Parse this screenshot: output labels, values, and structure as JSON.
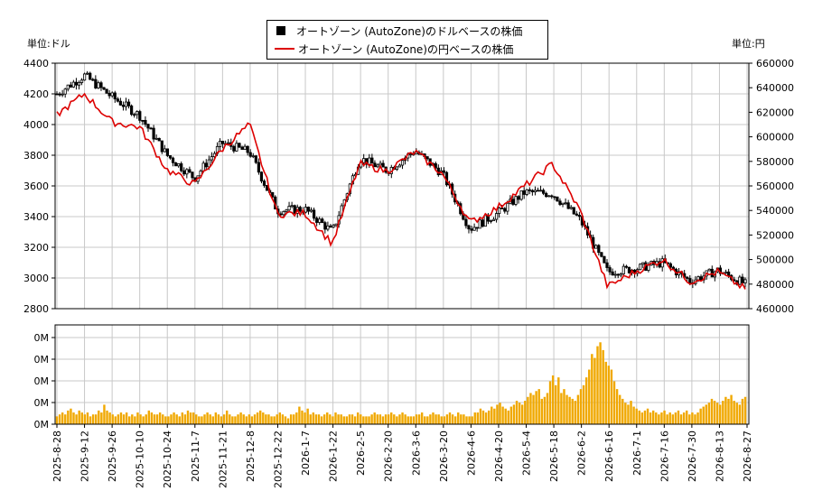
{
  "legend": {
    "dollar_series": "オートゾーン (AutoZone)のドルベースの株価",
    "yen_series": "オートゾーン (AutoZone)の円ベースの株価"
  },
  "units": {
    "left": "単位:ドル",
    "right": "単位:円"
  },
  "colors": {
    "candle": "#000000",
    "yen_line": "#dd0000",
    "volume": "#f0a800",
    "grid": "#c8c8c8"
  },
  "chart_data": {
    "type": "line",
    "x_tick_labels": [
      "2025-8-28",
      "2025-9-12",
      "2025-9-26",
      "2025-10-10",
      "2025-10-24",
      "2025-11-7",
      "2025-11-21",
      "2025-12-8",
      "2025-12-22",
      "2026-1-7",
      "2026-1-22",
      "2026-2-5",
      "2026-2-20",
      "2026-3-6",
      "2026-3-20",
      "2026-4-6",
      "2026-4-20",
      "2026-5-4",
      "2026-5-18",
      "2026-6-2",
      "2026-6-16",
      "2026-7-1",
      "2026-7-16",
      "2026-7-30",
      "2026-8-13",
      "2026-8-27"
    ],
    "y_left_ticks": [
      "2800",
      "3000",
      "3200",
      "3400",
      "3600",
      "3800",
      "4000",
      "4200",
      "4400"
    ],
    "y_right_ticks": [
      "460000",
      "480000",
      "500000",
      "520000",
      "540000",
      "560000",
      "580000",
      "600000",
      "620000",
      "640000",
      "660000"
    ],
    "volume_ticks": [
      "0M",
      "0M",
      "0M",
      "0M",
      "0M"
    ],
    "ylim_left": [
      2800,
      4400
    ],
    "ylim_right": [
      460000,
      660000
    ],
    "series": [
      {
        "name": "オートゾーン (AutoZone)のドルベースの株価",
        "x": [
          "2025-8-28",
          "2025-9-12",
          "2025-9-26",
          "2025-10-10",
          "2025-10-24",
          "2025-11-7",
          "2025-11-21",
          "2025-12-8",
          "2025-12-22",
          "2026-1-7",
          "2026-1-22",
          "2026-2-5",
          "2026-2-20",
          "2026-3-6",
          "2026-3-20",
          "2026-4-6",
          "2026-4-20",
          "2026-5-4",
          "2026-5-18",
          "2026-6-2",
          "2026-6-16",
          "2026-7-1",
          "2026-7-16",
          "2026-7-30",
          "2026-8-13",
          "2026-8-27"
        ],
        "values": [
          4200,
          4320,
          4180,
          4060,
          3800,
          3650,
          3880,
          3820,
          3440,
          3450,
          3300,
          3780,
          3700,
          3830,
          3680,
          3320,
          3420,
          3560,
          3550,
          3380,
          3040,
          3060,
          3100,
          2980,
          3050,
          2960
        ]
      },
      {
        "name": "オートゾーン (AutoZone)の円ベースの株価",
        "x": [
          "2025-8-28",
          "2025-9-12",
          "2025-9-26",
          "2025-10-10",
          "2025-10-24",
          "2025-11-7",
          "2025-11-21",
          "2025-12-8",
          "2025-12-22",
          "2026-1-7",
          "2026-1-22",
          "2026-2-5",
          "2026-2-20",
          "2026-3-6",
          "2026-3-20",
          "2026-4-6",
          "2026-4-20",
          "2026-5-4",
          "2026-5-18",
          "2026-6-2",
          "2026-6-16",
          "2026-7-1",
          "2026-7-16",
          "2026-7-30",
          "2026-8-13",
          "2026-8-27"
        ],
        "values": [
          618000,
          635000,
          612000,
          608000,
          573000,
          561000,
          590000,
          610000,
          537000,
          538000,
          513000,
          578000,
          572000,
          588000,
          570000,
          530000,
          542000,
          560000,
          578000,
          540000,
          478000,
          490000,
          500000,
          482000,
          490000,
          476000
        ]
      }
    ],
    "volume_values": [
      4,
      5,
      6,
      5,
      7,
      8,
      6,
      5,
      7,
      6,
      5,
      6,
      4,
      5,
      5,
      7,
      6,
      10,
      7,
      6,
      5,
      4,
      5,
      6,
      5,
      6,
      4,
      5,
      4,
      6,
      5,
      4,
      5,
      7,
      6,
      5,
      5,
      6,
      5,
      4,
      4,
      5,
      6,
      5,
      4,
      6,
      5,
      7,
      6,
      6,
      5,
      4,
      4,
      5,
      6,
      5,
      4,
      6,
      5,
      4,
      5,
      7,
      5,
      4,
      4,
      5,
      6,
      5,
      4,
      5,
      4,
      5,
      6,
      7,
      6,
      5,
      5,
      4,
      4,
      5,
      6,
      5,
      4,
      3,
      5,
      5,
      6,
      9,
      7,
      6,
      8,
      5,
      6,
      5,
      5,
      4,
      5,
      6,
      5,
      4,
      6,
      5,
      5,
      4,
      4,
      5,
      5,
      4,
      6,
      5,
      4,
      4,
      4,
      5,
      6,
      5,
      5,
      4,
      5,
      5,
      6,
      5,
      4,
      5,
      6,
      5,
      4,
      4,
      4,
      5,
      5,
      6,
      4,
      4,
      5,
      6,
      5,
      5,
      4,
      4,
      5,
      6,
      5,
      4,
      6,
      5,
      5,
      4,
      4,
      4,
      6,
      6,
      8,
      7,
      6,
      7,
      9,
      8,
      10,
      11,
      9,
      8,
      7,
      9,
      10,
      12,
      11,
      10,
      12,
      14,
      16,
      15,
      17,
      18,
      13,
      14,
      16,
      22,
      25,
      20,
      24,
      16,
      18,
      15,
      14,
      13,
      12,
      15,
      18,
      20,
      24,
      28,
      36,
      34,
      40,
      42,
      38,
      32,
      30,
      28,
      22,
      18,
      15,
      13,
      11,
      10,
      12,
      9,
      8,
      7,
      6,
      7,
      8,
      6,
      7,
      6,
      5,
      6,
      7,
      5,
      6,
      5,
      6,
      7,
      5,
      6,
      7,
      5,
      6,
      5,
      6,
      8,
      9,
      10,
      11,
      13,
      12,
      11,
      10,
      12,
      14,
      13,
      15,
      12,
      11,
      10,
      13,
      14
    ]
  }
}
